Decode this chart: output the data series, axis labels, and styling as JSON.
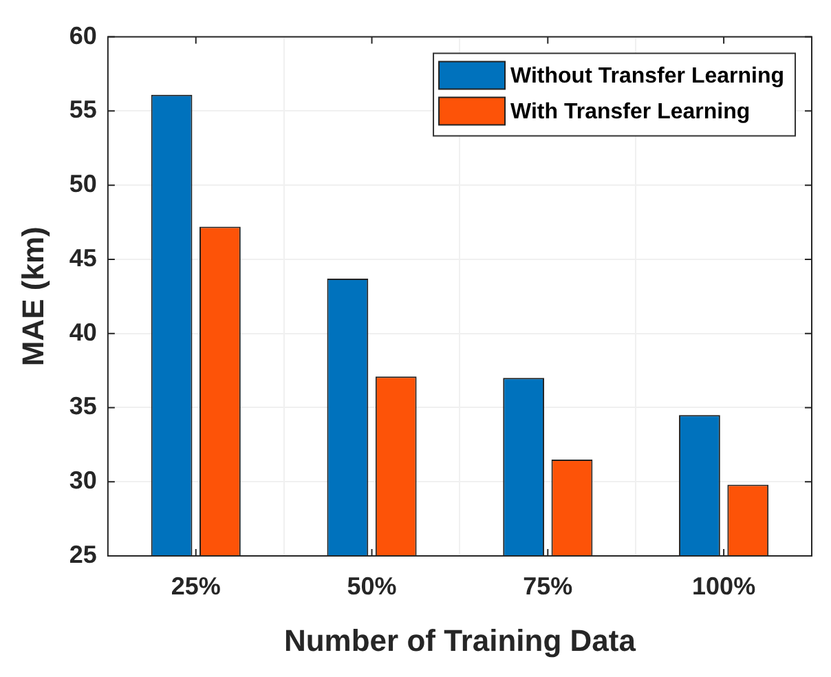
{
  "chart_data": {
    "type": "bar",
    "xlabel": "Number of Training Data",
    "ylabel": "MAE (km)",
    "categories": [
      "25%",
      "50%",
      "75%",
      "100%"
    ],
    "series": [
      {
        "name": "Without Transfer Learning",
        "color": "#0072bd",
        "values": [
          56.1,
          43.7,
          37.0,
          34.5
        ]
      },
      {
        "name": "With Transfer Learning",
        "color": "#fd5308",
        "values": [
          47.2,
          37.1,
          31.5,
          29.8
        ]
      }
    ],
    "ylim": [
      25,
      60
    ],
    "yticks": [
      25,
      30,
      35,
      40,
      45,
      50,
      55,
      60
    ],
    "grid": true,
    "legend": "top right"
  }
}
